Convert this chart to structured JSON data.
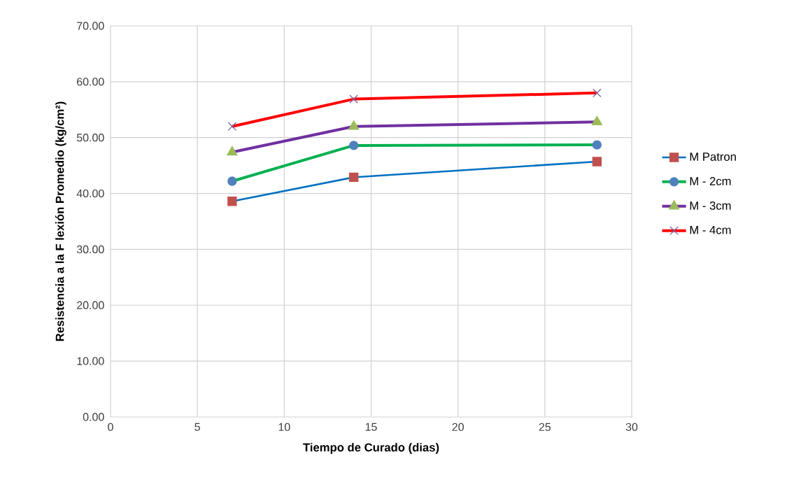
{
  "chart_data": {
    "type": "line",
    "xlabel": "Tiempo de Curado (dias)",
    "ylabel": "Resistencia a la F lexión Promedio (kg/cm²)",
    "x": [
      7,
      14,
      28
    ],
    "series": [
      {
        "name": "M Patron",
        "color": "#0070c0",
        "marker": "square",
        "colors": [
          "#c0504d",
          "#c0504d",
          "#c0504d"
        ],
        "values": [
          38.6,
          42.9,
          45.7
        ]
      },
      {
        "name": "M - 2cm",
        "color": "#00b050",
        "marker": "circle",
        "colors": [
          "#4f81bd",
          "#4f81bd",
          "#4f81bd"
        ],
        "values": [
          42.2,
          48.6,
          48.7
        ]
      },
      {
        "name": "M - 3cm",
        "color": "#7030a0",
        "marker": "triangle",
        "colors": [
          "#9bbb59",
          "#9bbb59",
          "#9bbb59"
        ],
        "values": [
          47.4,
          52.0,
          52.8
        ]
      },
      {
        "name": "M - 4cm",
        "color": "#ff0000",
        "marker": "cross",
        "colors": [
          "#8064a2",
          "#8064a2",
          "#8064a2"
        ],
        "values": [
          52.0,
          56.9,
          58.0
        ]
      }
    ],
    "xlim": [
      0,
      30
    ],
    "xticks": [
      0,
      5,
      10,
      15,
      20,
      25,
      30
    ],
    "ylim": [
      0,
      70
    ],
    "yticks": [
      {
        "value": 0,
        "label": "0.00"
      },
      {
        "value": 10,
        "label": "10.00"
      },
      {
        "value": 20,
        "label": "20.00"
      },
      {
        "value": 30,
        "label": "30.00"
      },
      {
        "value": 40,
        "label": "40.00"
      },
      {
        "value": 50,
        "label": "50.00"
      },
      {
        "value": 60,
        "label": "60.00"
      },
      {
        "value": 70,
        "label": "70.00"
      }
    ],
    "grid": true,
    "legend": "right",
    "line_style": "solid"
  }
}
